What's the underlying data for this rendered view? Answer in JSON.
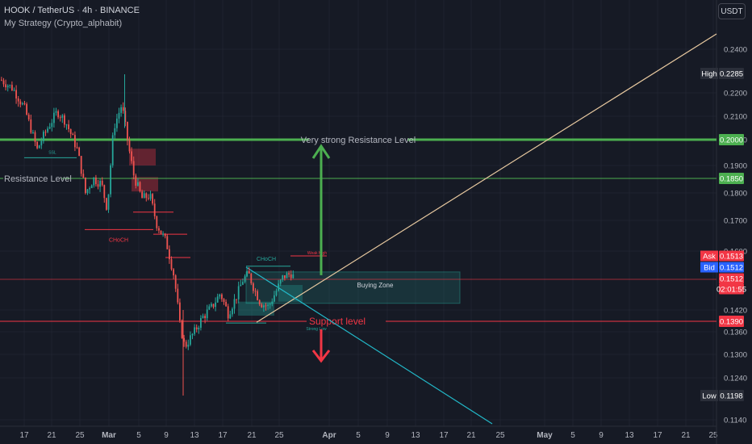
{
  "header": {
    "title": "HOOK / TetherUS · 4h · BINANCE",
    "strategy": "My Strategy (Crypto_alphabit)"
  },
  "unit_button": "USDT",
  "chart_data": {
    "type": "candlestick",
    "symbol": "HOOK / TetherUS",
    "timeframe": "4h",
    "exchange": "BINANCE",
    "y_ticks": [
      0.24,
      0.22,
      0.21,
      0.2,
      0.19,
      0.18,
      0.17,
      0.16,
      0.142,
      0.136,
      0.13,
      0.124,
      0.114
    ],
    "y_tick_labels": [
      "0.2400",
      "0.2200",
      "0.2100",
      "0.2000",
      "0.1900",
      "0.1800",
      "0.1700",
      "0.1600",
      "0.1420",
      "0.1360",
      "0.1300",
      "0.1240",
      "0.1140"
    ],
    "x_tick_labels": [
      "17",
      "21",
      "25",
      "Mar",
      "5",
      "9",
      "13",
      "17",
      "21",
      "25",
      "Apr",
      "5",
      "9",
      "13",
      "17",
      "21",
      "25",
      "May",
      "5",
      "9",
      "13",
      "17",
      "21",
      "25"
    ],
    "price_labels": [
      {
        "tag": "High",
        "value": "0.2285",
        "color": "#2a2e39"
      },
      {
        "tag": "",
        "value": "0.2000",
        "color": "#4caf50"
      },
      {
        "tag": "",
        "value": "0.1850",
        "color": "#4caf50"
      },
      {
        "tag": "Ask",
        "value": "0.1513",
        "color": "#f23645"
      },
      {
        "tag": "Bid",
        "value": "0.1512",
        "color": "#2962ff"
      },
      {
        "tag": "",
        "value": "0.1512",
        "color": "#f23645"
      },
      {
        "tag": "",
        "value": "02:01:55",
        "color": "#f23645"
      },
      {
        "tag": "",
        "value": "0.1390",
        "color": "#f23645"
      },
      {
        "tag": "Low",
        "value": "0.1198",
        "color": "#2a2e39"
      }
    ],
    "levels": [
      {
        "label": "Very strong Resistance Level",
        "value": 0.2,
        "color": "#4caf50"
      },
      {
        "label": "Resistance Level",
        "value": 0.185,
        "color": "#4caf50"
      },
      {
        "label": "Support level",
        "value": 0.139,
        "color": "#f23645"
      },
      {
        "label": "",
        "value": 0.1512,
        "color": "#f23645"
      }
    ],
    "annotations": [
      "Buying Zone",
      "CHoCH",
      "CHoCH",
      "Weak High",
      "Strong Low",
      "SSL"
    ],
    "colors": {
      "up": "#26a69a",
      "down": "#ef5350",
      "background": "#161a25"
    }
  }
}
